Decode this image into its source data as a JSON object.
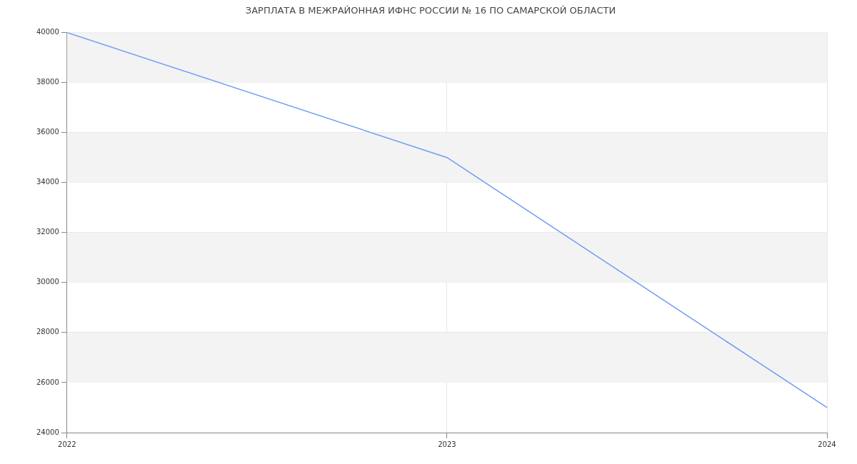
{
  "chart_data": {
    "type": "line",
    "title": "ЗАРПЛАТА В МЕЖРАЙОННАЯ ИФНС РОССИИ № 16 ПО САМАРСКОЙ ОБЛАСТИ",
    "categories": [
      "2022",
      "2023",
      "2024"
    ],
    "series": [
      {
        "color": "#6e9bf5",
        "values": [
          40000,
          35000,
          25000
        ]
      }
    ],
    "ylim": [
      24000,
      40000
    ],
    "yticks": [
      24000,
      26000,
      28000,
      30000,
      32000,
      34000,
      36000,
      38000,
      40000
    ],
    "bands": [
      {
        "axis": "y",
        "from": 38000,
        "to": 40000,
        "color": "#f3f3f3"
      },
      {
        "axis": "y",
        "from": 34000,
        "to": 36000,
        "color": "#f3f3f3"
      },
      {
        "axis": "y",
        "from": 30000,
        "to": 32000,
        "color": "#f3f3f3"
      },
      {
        "axis": "y",
        "from": 26000,
        "to": 28000,
        "color": "#f3f3f3"
      }
    ],
    "grid": true,
    "legend": false,
    "marker": "none",
    "line_style": "solid"
  }
}
